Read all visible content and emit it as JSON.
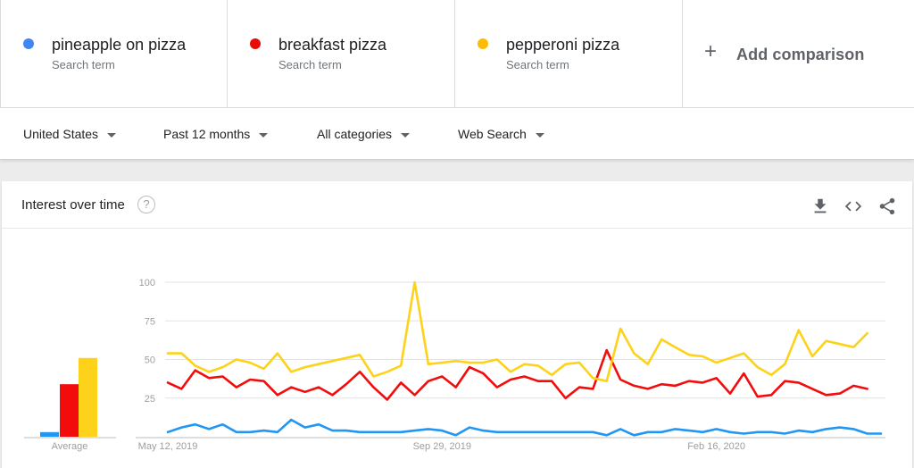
{
  "terms": [
    {
      "name": "pineapple on pizza",
      "sub": "Search term",
      "color": "#4285f4"
    },
    {
      "name": "breakfast pizza",
      "sub": "Search term",
      "color": "#ea0a0a"
    },
    {
      "name": "pepperoni pizza",
      "sub": "Search term",
      "color": "#fbbc04"
    }
  ],
  "add_comparison": {
    "icon": "+",
    "label": "Add comparison"
  },
  "filters": {
    "region": "United States",
    "time": "Past 12 months",
    "category": "All categories",
    "property": "Web Search"
  },
  "card": {
    "title": "Interest over time",
    "help_icon": "?"
  },
  "chart_data": {
    "type": "line",
    "y_ticks": [
      "100",
      "75",
      "50",
      "25"
    ],
    "ylim": [
      0,
      100
    ],
    "x_tick_labels": [
      "May 12, 2019",
      "Sep 29, 2019",
      "Feb 16, 2020"
    ],
    "x_tick_index": [
      0,
      20,
      40
    ],
    "grid": true,
    "series": [
      {
        "name": "pineapple on pizza",
        "color": "#2196f3",
        "values": [
          3,
          6,
          8,
          5,
          8,
          3,
          3,
          4,
          3,
          11,
          6,
          8,
          4,
          4,
          3,
          3,
          3,
          3,
          4,
          5,
          4,
          1,
          6,
          4,
          3,
          3,
          3,
          3,
          3,
          3,
          3,
          3,
          1,
          5,
          1,
          3,
          3,
          5,
          4,
          3,
          5,
          3,
          2,
          3,
          3,
          2,
          4,
          3,
          5,
          6,
          5,
          2,
          2
        ]
      },
      {
        "name": "breakfast pizza",
        "color": "#f20c0c",
        "values": [
          35,
          31,
          43,
          38,
          39,
          32,
          37,
          36,
          27,
          32,
          29,
          32,
          27,
          34,
          42,
          32,
          24,
          35,
          27,
          36,
          39,
          32,
          45,
          41,
          32,
          37,
          39,
          36,
          36,
          25,
          32,
          31,
          56,
          37,
          33,
          31,
          34,
          33,
          36,
          35,
          38,
          28,
          41,
          26,
          27,
          36,
          35,
          31,
          27,
          28,
          33,
          31,
          null
        ]
      },
      {
        "name": "pepperoni pizza",
        "color": "#fdd21a",
        "values": [
          54,
          54,
          46,
          42,
          45,
          50,
          48,
          44,
          54,
          42,
          45,
          47,
          49,
          51,
          53,
          39,
          42,
          46,
          100,
          47,
          48,
          49,
          48,
          48,
          50,
          42,
          47,
          46,
          40,
          47,
          48,
          38,
          36,
          70,
          54,
          47,
          63,
          58,
          53,
          52,
          48,
          51,
          54,
          45,
          40,
          47,
          69,
          52,
          62,
          60,
          58,
          67,
          null
        ]
      }
    ],
    "averages": [
      3,
      34,
      51
    ],
    "average_label": "Average"
  }
}
